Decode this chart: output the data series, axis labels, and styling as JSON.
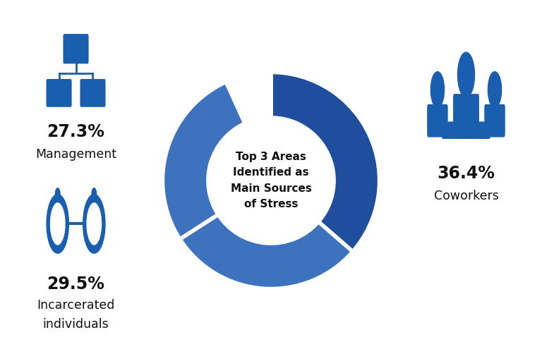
{
  "percentages": [
    36.4,
    29.5,
    27.3
  ],
  "other_pct": 6.8,
  "colors_pie": [
    "#1f4e9e",
    "#3d72bf",
    "#3d72bf"
  ],
  "color_other": "#ffffff",
  "center_text": "Top 3 Areas\nIdentified as\nMain Sources\nof Stress",
  "background_color": "#ffffff",
  "border_color": "#1a5faf",
  "accent_color": "#1a5faf",
  "pct_coworkers": "36.4%",
  "pct_incarcerated": "29.5%",
  "pct_management": "27.3%",
  "label_coworkers": "Coworkers",
  "label_incarcerated1": "Incarcerated",
  "label_incarcerated2": "individuals",
  "label_management": "Management"
}
